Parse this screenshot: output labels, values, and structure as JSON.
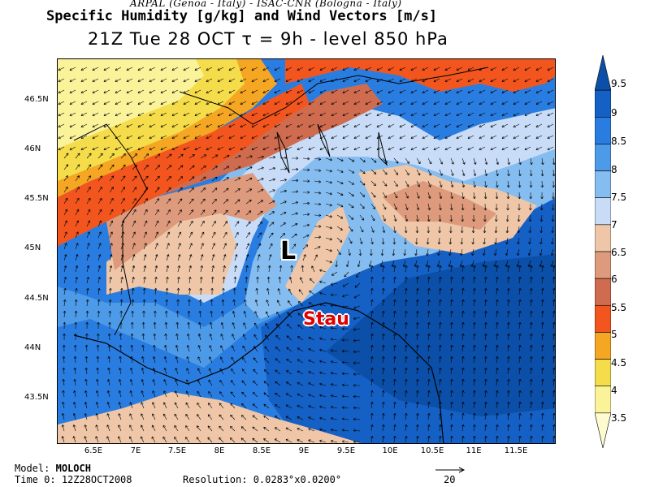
{
  "header": {
    "source": "ARPAL (Genoa - Italy)  -  ISAC-CNR (Bologna - Italy)",
    "title": "Specific Humidity [g/kg] and Wind Vectors [m/s]",
    "time_line": "21Z Tue 28 OCT  τ = 9h  -  level 850 hPa"
  },
  "map": {
    "lat_labels": [
      "46.5N",
      "46N",
      "45.5N",
      "45N",
      "44.5N",
      "44N",
      "43.5N"
    ],
    "lon_labels": [
      "6.5E",
      "7E",
      "7.5E",
      "8E",
      "8.5E",
      "9E",
      "9.5E",
      "10E",
      "10.5E",
      "11E",
      "11.5E"
    ],
    "annotations": {
      "low": "L",
      "stau": "Stau"
    }
  },
  "colorbar": {
    "levels": [
      "9.5",
      "9",
      "8.5",
      "8",
      "7.5",
      "7",
      "6.5",
      "6",
      "5.5",
      "5",
      "4.5",
      "4",
      "3.5"
    ],
    "colors": [
      "#0b4fa8",
      "#1560c4",
      "#2a7de0",
      "#4d9ae8",
      "#86bdf0",
      "#c8dcf7",
      "#efc7a8",
      "#dd9a7c",
      "#cf6c4f",
      "#f2561e",
      "#f5a623",
      "#f5dc4a",
      "#fbf39a",
      "#fffbd0"
    ]
  },
  "footer": {
    "model_label": "Model:",
    "model_value": "MOLOCH",
    "time0_label": "Time 0:",
    "time0_value": "12Z28OCT2008",
    "resolution": "Resolution: 0.0283°x0.0200°",
    "ref_vector": "20"
  }
}
